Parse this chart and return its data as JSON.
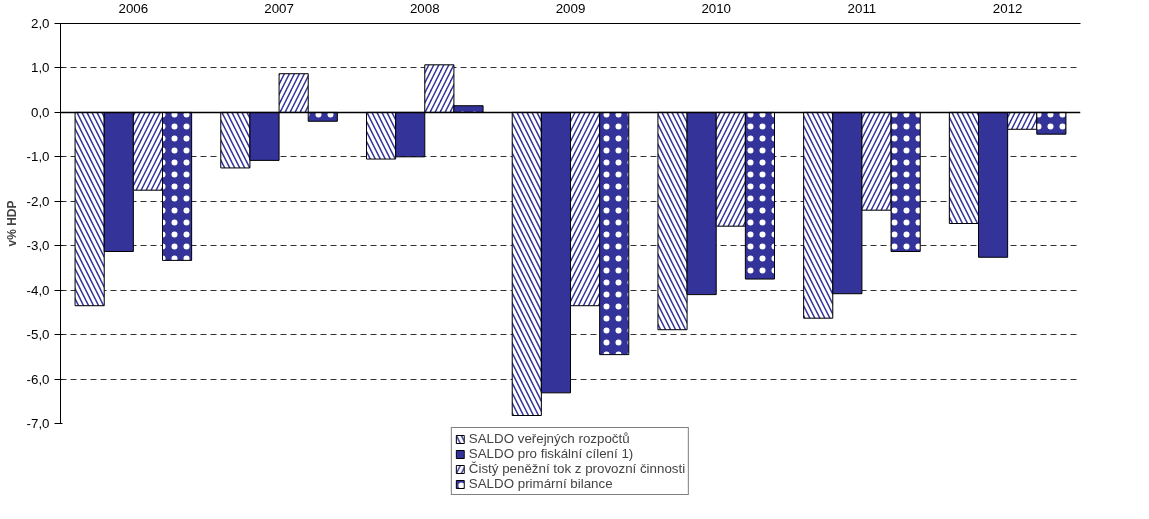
{
  "chart_data": {
    "type": "bar",
    "ylabel": "v% HDP",
    "categories": [
      "2006",
      "2007",
      "2008",
      "2009",
      "2010",
      "2011",
      "2012"
    ],
    "series": [
      {
        "name": "SALDO veřejných rozpočtů",
        "color": "#333399",
        "values": [
          -4.35,
          -1.25,
          -1.05,
          -6.82,
          -4.89,
          -4.63,
          -2.5
        ]
      },
      {
        "name": "SALDO pro fiskální cílení 1)",
        "color": "#333399",
        "values": [
          -3.13,
          -1.08,
          -1.0,
          -6.31,
          -4.1,
          -4.08,
          -3.26
        ]
      },
      {
        "name": "Čistý peněžní tok z provozní činnosti",
        "color": "#333399",
        "values": [
          -1.75,
          0.87,
          1.07,
          -4.35,
          -2.56,
          -2.2,
          -0.38
        ]
      },
      {
        "name": "SALDO primární bilance",
        "color": "#333399",
        "values": [
          -3.33,
          -0.2,
          0.15,
          -5.45,
          -3.75,
          -3.13,
          -0.49
        ]
      }
    ],
    "ylim": [
      -7,
      2
    ],
    "yticks": [
      {
        "value": -7,
        "label": "-7,0"
      },
      {
        "value": -6,
        "label": "-6,0"
      },
      {
        "value": -5,
        "label": "-5,0"
      },
      {
        "value": -4,
        "label": "-4,0"
      },
      {
        "value": -3,
        "label": "-3,0"
      },
      {
        "value": -2,
        "label": "-2,0"
      },
      {
        "value": -1,
        "label": "-1,0"
      },
      {
        "value": 0,
        "label": "0,0"
      },
      {
        "value": 1,
        "label": "1,0"
      },
      {
        "value": 2,
        "label": "2,0"
      }
    ],
    "grid": "y",
    "legend": "bottom"
  }
}
